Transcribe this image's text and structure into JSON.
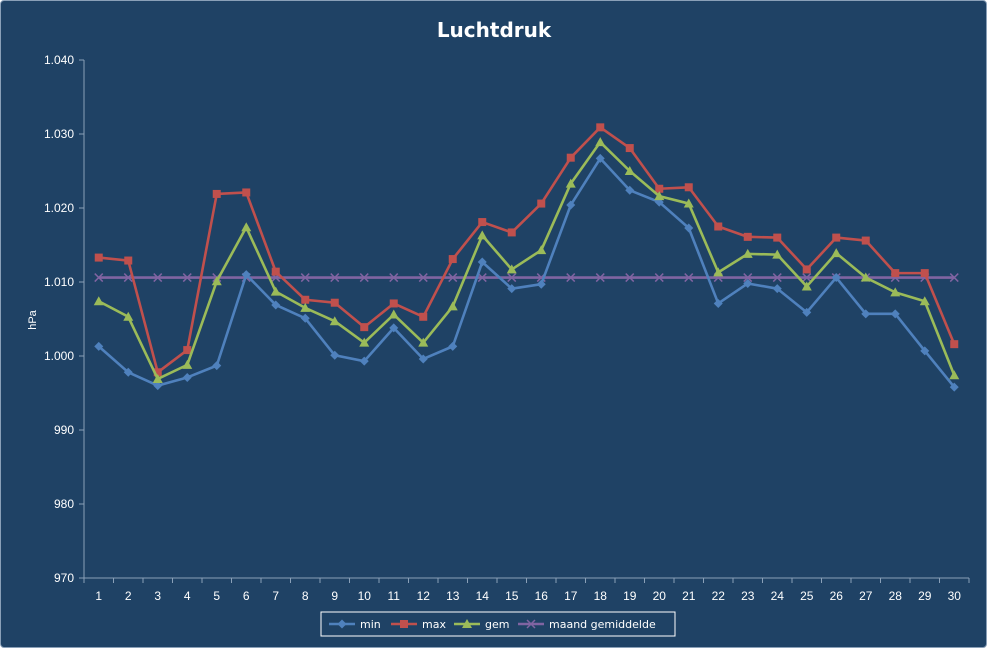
{
  "chart_data": {
    "type": "line",
    "title": "Luchtdruk",
    "xlabel": "",
    "ylabel": "hPa",
    "ylim": [
      970,
      1040
    ],
    "yticks": [
      970,
      980,
      990,
      1000,
      1010,
      1020,
      1030,
      1040
    ],
    "ytick_labels": [
      "970",
      "980",
      "990",
      "1.000",
      "1.010",
      "1.020",
      "1.030",
      "1.040"
    ],
    "categories": [
      "1",
      "2",
      "3",
      "4",
      "5",
      "6",
      "7",
      "8",
      "9",
      "10",
      "11",
      "12",
      "13",
      "14",
      "15",
      "16",
      "17",
      "18",
      "19",
      "20",
      "21",
      "22",
      "23",
      "24",
      "25",
      "26",
      "27",
      "28",
      "29",
      "30"
    ],
    "grid": false,
    "legend": "bottom",
    "series": [
      {
        "name": "min",
        "color": "#4f81bd",
        "marker": "diamond",
        "values": [
          1001.3,
          997.8,
          996.0,
          997.1,
          998.7,
          1011.0,
          1006.9,
          1005.1,
          1000.1,
          999.3,
          1003.8,
          999.6,
          1001.3,
          1012.7,
          1009.1,
          1009.7,
          1020.4,
          1026.7,
          1022.4,
          1020.8,
          1017.3,
          1007.1,
          1009.8,
          1009.1,
          1005.9,
          1010.6,
          1005.7,
          1005.7,
          1000.7,
          995.8
        ]
      },
      {
        "name": "max",
        "color": "#c0504d",
        "marker": "square",
        "values": [
          1013.3,
          1012.9,
          997.8,
          1000.8,
          1021.9,
          1022.1,
          1011.4,
          1007.6,
          1007.2,
          1003.9,
          1007.1,
          1005.3,
          1013.1,
          1018.1,
          1016.7,
          1020.6,
          1026.8,
          1030.9,
          1028.1,
          1022.6,
          1022.8,
          1017.5,
          1016.1,
          1016.0,
          1011.7,
          1016.0,
          1015.6,
          1011.2,
          1011.2,
          1001.6
        ]
      },
      {
        "name": "gem",
        "color": "#9bbb59",
        "marker": "triangle",
        "values": [
          1007.4,
          1005.3,
          996.9,
          998.8,
          1010.1,
          1017.4,
          1008.7,
          1006.5,
          1004.7,
          1001.8,
          1005.6,
          1001.8,
          1006.7,
          1016.3,
          1011.7,
          1014.3,
          1023.3,
          1028.9,
          1025.0,
          1021.6,
          1020.6,
          1011.3,
          1013.8,
          1013.7,
          1009.4,
          1013.9,
          1010.6,
          1008.6,
          1007.4,
          997.4
        ]
      },
      {
        "name": "maand gemiddelde",
        "color": "#8064a2",
        "marker": "x",
        "values": [
          1010.6,
          1010.6,
          1010.6,
          1010.6,
          1010.6,
          1010.6,
          1010.6,
          1010.6,
          1010.6,
          1010.6,
          1010.6,
          1010.6,
          1010.6,
          1010.6,
          1010.6,
          1010.6,
          1010.6,
          1010.6,
          1010.6,
          1010.6,
          1010.6,
          1010.6,
          1010.6,
          1010.6,
          1010.6,
          1010.6,
          1010.6,
          1010.6,
          1010.6,
          1010.6
        ]
      }
    ],
    "colors": {
      "background": "#1f4265",
      "axis": "#8aa0b8",
      "text": "#ffffff",
      "legend_bg": "#ffffff"
    }
  }
}
